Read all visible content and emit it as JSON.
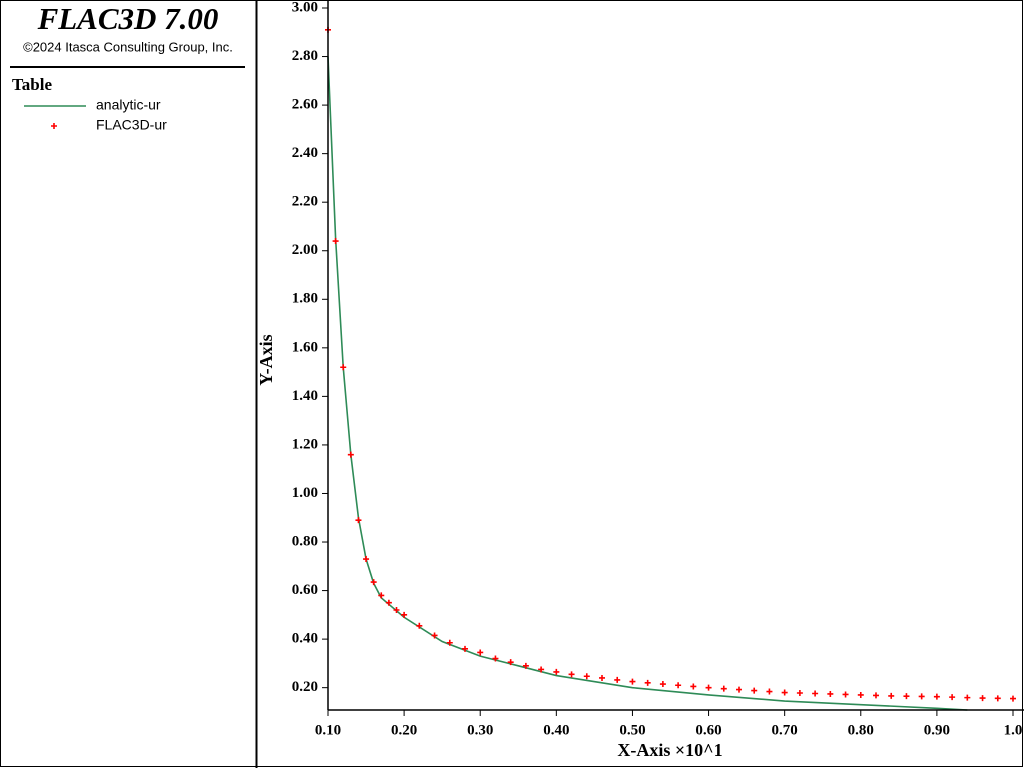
{
  "chart_data": {
    "type": "line",
    "title": "FLAC3D 7.00",
    "subtitle": "©2024 Itasca Consulting Group, Inc.",
    "legend_title": "Table",
    "x_label": "X-Axis ×10^1",
    "y_label": "Y-Axis",
    "xlim": [
      0.1,
      1.0
    ],
    "ylim": [
      0.108,
      3.0
    ],
    "xticks": [
      {
        "value": 0.1,
        "label": "0.10"
      },
      {
        "value": 0.2,
        "label": "0.20"
      },
      {
        "value": 0.3,
        "label": "0.30"
      },
      {
        "value": 0.4,
        "label": "0.40"
      },
      {
        "value": 0.5,
        "label": "0.50"
      },
      {
        "value": 0.6,
        "label": "0.60"
      },
      {
        "value": 0.7,
        "label": "0.70"
      },
      {
        "value": 0.8,
        "label": "0.80"
      },
      {
        "value": 0.9,
        "label": "0.90"
      },
      {
        "value": 1.0,
        "label": "1.0"
      }
    ],
    "yticks": [
      {
        "value": 0.2,
        "label": "0.20"
      },
      {
        "value": 0.4,
        "label": "0.40"
      },
      {
        "value": 0.6,
        "label": "0.60"
      },
      {
        "value": 0.8,
        "label": "0.80"
      },
      {
        "value": 1.0,
        "label": "1.00"
      },
      {
        "value": 1.2,
        "label": "1.20"
      },
      {
        "value": 1.4,
        "label": "1.40"
      },
      {
        "value": 1.6,
        "label": "1.60"
      },
      {
        "value": 1.8,
        "label": "1.80"
      },
      {
        "value": 2.0,
        "label": "2.00"
      },
      {
        "value": 2.2,
        "label": "2.20"
      },
      {
        "value": 2.4,
        "label": "2.40"
      },
      {
        "value": 2.6,
        "label": "2.60"
      },
      {
        "value": 2.8,
        "label": "2.80"
      },
      {
        "value": 3.0,
        "label": "3.00"
      }
    ],
    "series": [
      {
        "name": "analytic-ur",
        "color": "#2e8b57",
        "style": "line",
        "x": [
          0.1,
          0.11,
          0.12,
          0.13,
          0.14,
          0.15,
          0.16,
          0.17,
          0.2,
          0.25,
          0.3,
          0.35,
          0.4,
          0.5,
          0.6,
          0.7,
          0.8,
          0.9,
          0.94
        ],
        "values": [
          2.8,
          2.05,
          1.52,
          1.16,
          0.9,
          0.73,
          0.63,
          0.57,
          0.49,
          0.39,
          0.33,
          0.29,
          0.25,
          0.2,
          0.17,
          0.145,
          0.13,
          0.115,
          0.108
        ]
      },
      {
        "name": "FLAC3D-ur",
        "color": "#ff0000",
        "style": "marker",
        "x": [
          0.1,
          0.11,
          0.12,
          0.13,
          0.14,
          0.15,
          0.16,
          0.17,
          0.18,
          0.19,
          0.2,
          0.22,
          0.24,
          0.26,
          0.28,
          0.3,
          0.32,
          0.34,
          0.36,
          0.38,
          0.4,
          0.42,
          0.44,
          0.46,
          0.48,
          0.5,
          0.52,
          0.54,
          0.56,
          0.58,
          0.6,
          0.62,
          0.64,
          0.66,
          0.68,
          0.7,
          0.72,
          0.74,
          0.76,
          0.78,
          0.8,
          0.82,
          0.84,
          0.86,
          0.88,
          0.9,
          0.92,
          0.94,
          0.96,
          0.98,
          1.0
        ],
        "values": [
          2.91,
          2.04,
          1.52,
          1.16,
          0.89,
          0.73,
          0.635,
          0.58,
          0.55,
          0.52,
          0.5,
          0.455,
          0.415,
          0.385,
          0.36,
          0.345,
          0.32,
          0.305,
          0.29,
          0.275,
          0.265,
          0.255,
          0.247,
          0.24,
          0.232,
          0.225,
          0.22,
          0.215,
          0.21,
          0.205,
          0.2,
          0.196,
          0.192,
          0.188,
          0.184,
          0.18,
          0.178,
          0.176,
          0.174,
          0.172,
          0.17,
          0.168,
          0.166,
          0.165,
          0.164,
          0.163,
          0.161,
          0.159,
          0.157,
          0.156,
          0.155
        ]
      }
    ]
  }
}
